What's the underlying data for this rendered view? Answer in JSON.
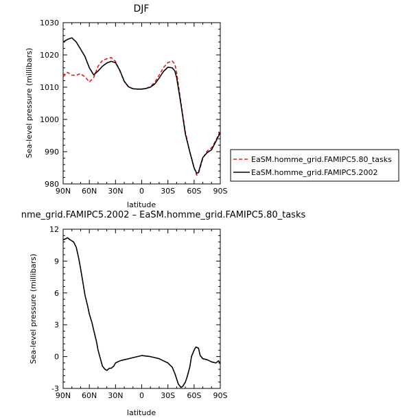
{
  "chart_data": [
    {
      "type": "line",
      "title": "DJF",
      "xlabel": "latitude",
      "ylabel": "Sea-level pressure (millibars)",
      "x_ticks": [
        90,
        60,
        30,
        0,
        -30,
        -60,
        -90
      ],
      "x_tick_labels": [
        "90N",
        "60N",
        "30N",
        "0",
        "30S",
        "60S",
        "90S"
      ],
      "y_ticks": [
        980,
        990,
        1000,
        1010,
        1020,
        1030
      ],
      "xlim": [
        90,
        -90
      ],
      "ylim": [
        980,
        1030
      ],
      "legend_position": "right",
      "series": [
        {
          "name": "EaSM.homme_grid.FAMIPC5.80_tasks",
          "color": "#e31a1c",
          "dash": "dashed",
          "x": [
            90,
            85,
            80,
            75,
            70,
            65,
            60,
            55,
            50,
            45,
            40,
            35,
            30,
            25,
            20,
            15,
            10,
            5,
            0,
            -5,
            -10,
            -15,
            -20,
            -25,
            -30,
            -35,
            -38,
            -40,
            -45,
            -50,
            -55,
            -60,
            -63,
            -65,
            -67,
            -70,
            -75,
            -80,
            -85,
            -90
          ],
          "values": [
            1013.2,
            1014.6,
            1013.7,
            1013.7,
            1014.2,
            1013.2,
            1011.6,
            1013.0,
            1016.5,
            1018.3,
            1018.8,
            1019.2,
            1018.0,
            1015.0,
            1011.7,
            1010.0,
            1009.5,
            1009.4,
            1009.4,
            1009.6,
            1010.2,
            1011.5,
            1013.7,
            1016.1,
            1017.6,
            1018.1,
            1017.1,
            1014.5,
            1005.0,
            996.0,
            990.0,
            985.0,
            982.7,
            983.3,
            985.0,
            988.0,
            990.2,
            991.2,
            993.5,
            996.5
          ]
        },
        {
          "name": "EaSM.homme_grid.FAMIPC5.2002",
          "color": "#000000",
          "dash": "solid",
          "x": [
            90,
            85,
            80,
            75,
            70,
            65,
            60,
            55,
            50,
            45,
            40,
            35,
            30,
            25,
            20,
            15,
            10,
            5,
            0,
            -5,
            -10,
            -15,
            -20,
            -25,
            -30,
            -35,
            -38,
            -40,
            -45,
            -50,
            -55,
            -60,
            -63,
            -65,
            -67,
            -70,
            -75,
            -80,
            -85,
            -90
          ],
          "values": [
            1024.0,
            1024.8,
            1025.3,
            1024.0,
            1021.8,
            1019.5,
            1016.0,
            1013.8,
            1015.0,
            1016.5,
            1017.5,
            1018.0,
            1017.6,
            1015.2,
            1011.8,
            1010.1,
            1009.5,
            1009.4,
            1009.4,
            1009.6,
            1010.0,
            1011.0,
            1012.8,
            1014.9,
            1016.2,
            1016.0,
            1015.0,
            1013.0,
            1004.5,
            995.5,
            990.0,
            985.0,
            983.3,
            983.5,
            985.5,
            988.2,
            989.7,
            990.6,
            993.2,
            996.0
          ]
        }
      ]
    },
    {
      "type": "line",
      "title": "nme_grid.FAMIPC5.2002 – EaSM.homme_grid.FAMIPC5.80_tasks",
      "xlabel": "latitude",
      "ylabel": "Sea-level pressure (millibars)",
      "x_ticks": [
        90,
        60,
        30,
        0,
        -30,
        -60,
        -90
      ],
      "x_tick_labels": [
        "90N",
        "60N",
        "30N",
        "0",
        "30S",
        "60S",
        "90S"
      ],
      "y_ticks": [
        -3,
        0,
        3,
        6,
        9,
        12
      ],
      "xlim": [
        90,
        -90
      ],
      "ylim": [
        -3,
        12
      ],
      "series": [
        {
          "name": "",
          "color": "#000000",
          "dash": "solid",
          "x": [
            90,
            87,
            85,
            82,
            80,
            78,
            75,
            72,
            70,
            67,
            65,
            62,
            60,
            57,
            55,
            52,
            50,
            47,
            45,
            42,
            40,
            37,
            35,
            32,
            30,
            25,
            20,
            15,
            10,
            5,
            0,
            -5,
            -10,
            -15,
            -20,
            -25,
            -30,
            -35,
            -38,
            -40,
            -42,
            -45,
            -47,
            -50,
            -52,
            -55,
            -57,
            -60,
            -62,
            -65,
            -67,
            -70,
            -75,
            -80,
            -85,
            -88,
            -90
          ],
          "values": [
            11.0,
            11.1,
            11.2,
            11.0,
            10.9,
            10.8,
            10.3,
            9.2,
            8.3,
            6.8,
            5.8,
            4.8,
            4.0,
            3.2,
            2.5,
            1.5,
            0.6,
            -0.3,
            -0.9,
            -1.2,
            -1.3,
            -1.1,
            -1.1,
            -0.9,
            -0.6,
            -0.4,
            -0.3,
            -0.2,
            -0.1,
            0.0,
            0.1,
            0.05,
            0.0,
            -0.1,
            -0.2,
            -0.4,
            -0.6,
            -1.0,
            -1.6,
            -2.1,
            -2.6,
            -2.9,
            -2.8,
            -2.4,
            -1.9,
            -1.0,
            0.0,
            0.6,
            0.9,
            0.8,
            0.1,
            -0.2,
            -0.3,
            -0.5,
            -0.6,
            -0.4,
            -0.7
          ]
        }
      ]
    }
  ]
}
